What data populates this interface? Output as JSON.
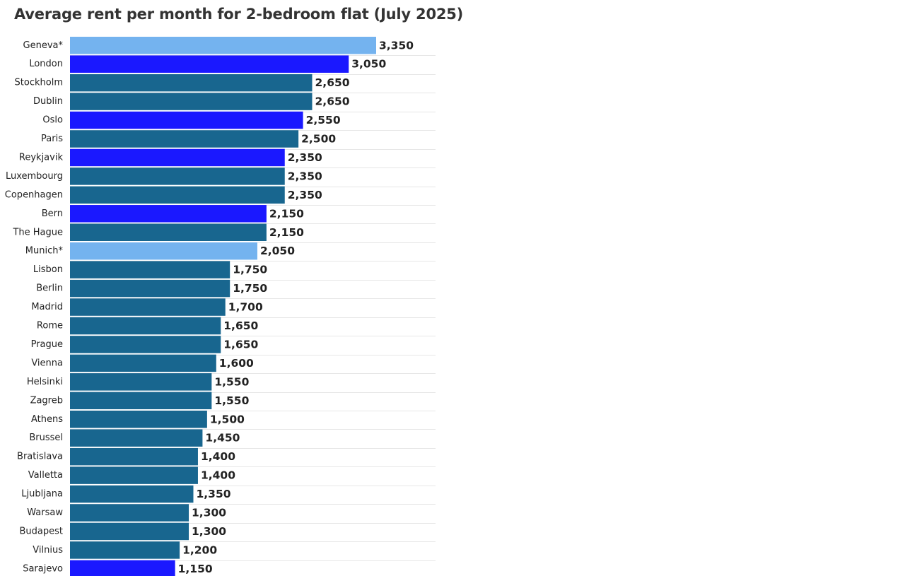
{
  "chart_data": {
    "type": "bar",
    "orientation": "horizontal",
    "title": "Average rent per month for 2-bedroom flat (July 2025)",
    "categories": [
      "Geneva*",
      "London",
      "Stockholm",
      "Dublin",
      "Oslo",
      "Paris",
      "Reykjavik",
      "Luxembourg",
      "Copenhagen",
      "Bern",
      "The Hague",
      "Munich*",
      "Lisbon",
      "Berlin",
      "Madrid",
      "Rome",
      "Prague",
      "Vienna",
      "Helsinki",
      "Zagreb",
      "Athens",
      "Brussel",
      "Bratislava",
      "Valletta",
      "Ljubljana",
      "Warsaw",
      "Budapest",
      "Vilnius",
      "Sarajevo"
    ],
    "values": [
      3350,
      3050,
      2650,
      2650,
      2550,
      2500,
      2350,
      2350,
      2350,
      2150,
      2150,
      2050,
      1750,
      1750,
      1700,
      1650,
      1650,
      1600,
      1550,
      1550,
      1500,
      1450,
      1400,
      1400,
      1350,
      1300,
      1300,
      1200,
      1150
    ],
    "value_labels": [
      "3,350",
      "3,050",
      "2,650",
      "2,650",
      "2,550",
      "2,500",
      "2,350",
      "2,350",
      "2,350",
      "2,150",
      "2,150",
      "2,050",
      "1,750",
      "1,750",
      "1,700",
      "1,650",
      "1,650",
      "1,600",
      "1,550",
      "1,550",
      "1,500",
      "1,450",
      "1,400",
      "1,400",
      "1,350",
      "1,300",
      "1,300",
      "1,200",
      "1,150"
    ],
    "bar_color_groups": [
      "light",
      "blue",
      "teal",
      "teal",
      "blue",
      "teal",
      "blue",
      "teal",
      "teal",
      "blue",
      "teal",
      "light",
      "teal",
      "teal",
      "teal",
      "teal",
      "teal",
      "teal",
      "teal",
      "teal",
      "teal",
      "teal",
      "teal",
      "teal",
      "teal",
      "teal",
      "teal",
      "teal",
      "blue"
    ],
    "colors": {
      "light": "#74b3ef",
      "blue": "#1a18ff",
      "teal": "#18668f"
    },
    "xlim": [
      0,
      3350
    ],
    "grid": true,
    "legend": "none"
  }
}
